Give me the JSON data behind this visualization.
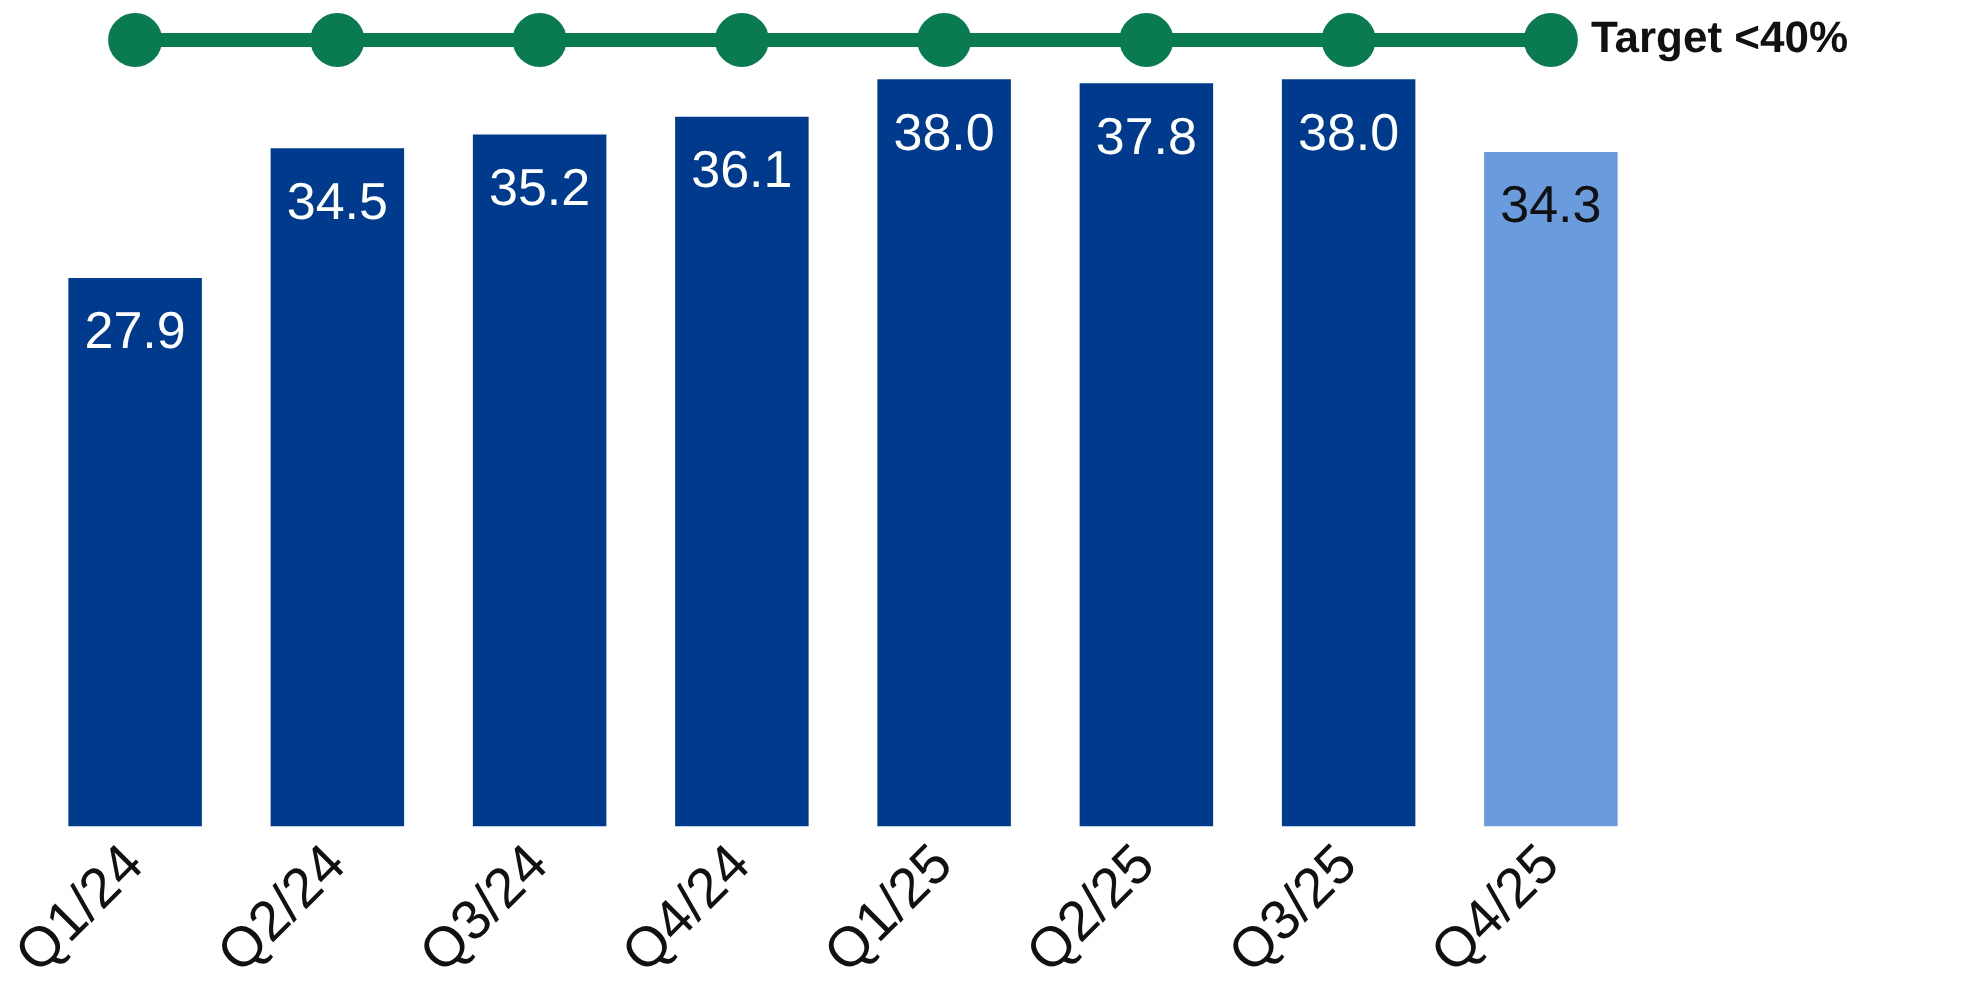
{
  "chart_data": {
    "type": "bar",
    "categories": [
      "Q1/24",
      "Q2/24",
      "Q3/24",
      "Q4/24",
      "Q1/25",
      "Q2/25",
      "Q3/25",
      "Q4/25"
    ],
    "series": [
      {
        "values": [
          27.9,
          34.5,
          35.2,
          36.1,
          38.0,
          37.8,
          38.0,
          34.3
        ],
        "colors": [
          "#003a8c",
          "#003a8c",
          "#003a8c",
          "#003a8c",
          "#003a8c",
          "#003a8c",
          "#003a8c",
          "#6a9bdc"
        ],
        "value_labels": [
          "27.9",
          "34.5",
          "35.2",
          "36.1",
          "38.0",
          "37.8",
          "38.0",
          "34.3"
        ]
      },
      {
        "type": "line",
        "name": "Target <40%",
        "color": "#0a7a50",
        "values": [
          40,
          40,
          40,
          40,
          40,
          40,
          40,
          40
        ]
      }
    ],
    "tick_labels": "x",
    "grid": false,
    "legend": false,
    "marker": "circle",
    "line_style": "solid"
  }
}
